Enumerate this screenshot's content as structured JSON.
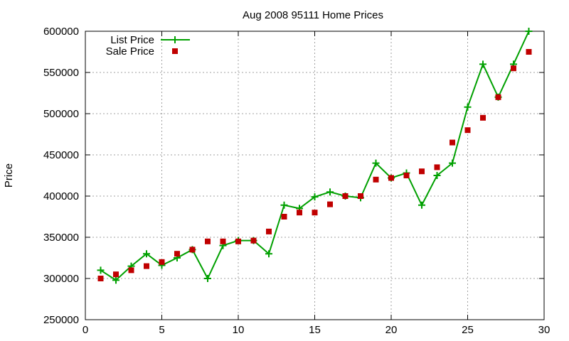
{
  "chart_data": {
    "type": "line",
    "title": "Aug 2008 95111 Home Prices",
    "xlabel": "",
    "ylabel": "Price",
    "xlim": [
      0,
      30
    ],
    "ylim": [
      250000,
      600000
    ],
    "x_ticks": [
      0,
      5,
      10,
      15,
      20,
      25,
      30
    ],
    "y_ticks": [
      250000,
      300000,
      350000,
      400000,
      450000,
      500000,
      550000,
      600000
    ],
    "grid": true,
    "legend_position": "top-left",
    "series": [
      {
        "name": "List Price",
        "style": "line-with-plus-markers",
        "color": "#00a000",
        "x": [
          1,
          2,
          3,
          4,
          5,
          6,
          7,
          8,
          9,
          10,
          11,
          12,
          13,
          14,
          15,
          16,
          17,
          18,
          19,
          20,
          21,
          22,
          23,
          24,
          25,
          26,
          27,
          28,
          29
        ],
        "y": [
          310000,
          298000,
          315000,
          330000,
          316000,
          325000,
          335000,
          300000,
          340000,
          346000,
          346000,
          330000,
          389000,
          385000,
          399000,
          405000,
          400000,
          398000,
          440000,
          422000,
          428000,
          389000,
          425000,
          440000,
          508000,
          560000,
          520000,
          560000,
          600000
        ]
      },
      {
        "name": "Sale Price",
        "style": "square-markers",
        "color": "#c00000",
        "x": [
          1,
          2,
          3,
          4,
          5,
          6,
          7,
          8,
          9,
          10,
          11,
          12,
          13,
          14,
          15,
          16,
          17,
          18,
          19,
          20,
          21,
          22,
          23,
          24,
          25,
          26,
          27,
          28,
          29
        ],
        "y": [
          300000,
          305000,
          310000,
          315000,
          320000,
          330000,
          335000,
          345000,
          345000,
          345000,
          346000,
          357000,
          375000,
          380000,
          380000,
          390000,
          400000,
          400000,
          420000,
          422000,
          425000,
          430000,
          435000,
          465000,
          480000,
          495000,
          520000,
          555000,
          575000
        ]
      }
    ]
  }
}
